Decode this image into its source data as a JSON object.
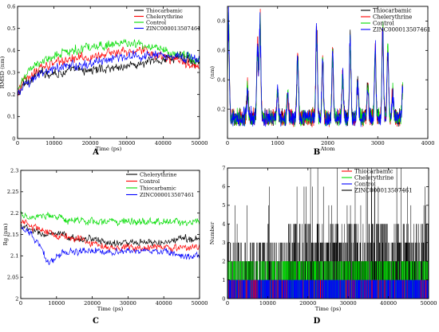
{
  "panels": [
    {
      "letter": "A",
      "chart_data": {
        "type": "line",
        "xlabel": "Time (ps)",
        "ylabel": "RMSD (nm)",
        "xlim": [
          0,
          50000
        ],
        "ylim": [
          0,
          0.6
        ],
        "xticks": [
          0,
          10000,
          20000,
          30000,
          40000,
          50000
        ],
        "yticks": [
          0,
          0.1,
          0.2,
          0.3,
          0.4,
          0.5,
          0.6
        ],
        "xtick_labels": [
          "0",
          "10000",
          "20000",
          "30000",
          "40000",
          "50000"
        ],
        "ytick_labels": [
          "0",
          "0.1",
          "0.2",
          "0.3",
          "0.4",
          "0.5",
          "0.6"
        ],
        "legend_position": "top-right",
        "grid": false,
        "series": [
          {
            "name": "Thiocarbamic",
            "color": "#000000",
            "x": [
              0,
              2000,
              5000,
              8000,
              12000,
              16000,
              20000,
              25000,
              30000,
              35000,
              40000,
              45000,
              50000
            ],
            "y": [
              0.2,
              0.25,
              0.29,
              0.3,
              0.3,
              0.31,
              0.31,
              0.32,
              0.33,
              0.34,
              0.36,
              0.37,
              0.35
            ]
          },
          {
            "name": "Chelerythrine",
            "color": "#ff0000",
            "x": [
              0,
              2000,
              5000,
              8000,
              12000,
              16000,
              20000,
              25000,
              30000,
              35000,
              40000,
              45000,
              50000
            ],
            "y": [
              0.2,
              0.27,
              0.31,
              0.33,
              0.35,
              0.36,
              0.37,
              0.39,
              0.4,
              0.4,
              0.37,
              0.35,
              0.32
            ]
          },
          {
            "name": "Control",
            "color": "#00dd00",
            "x": [
              0,
              2000,
              5000,
              8000,
              12000,
              16000,
              20000,
              25000,
              30000,
              35000,
              40000,
              45000,
              50000
            ],
            "y": [
              0.22,
              0.28,
              0.33,
              0.36,
              0.39,
              0.4,
              0.42,
              0.43,
              0.43,
              0.42,
              0.4,
              0.38,
              0.36
            ]
          },
          {
            "name": "ZINC000013507461",
            "color": "#0000ff",
            "x": [
              0,
              2000,
              5000,
              8000,
              12000,
              16000,
              20000,
              25000,
              30000,
              35000,
              40000,
              45000,
              50000
            ],
            "y": [
              0.21,
              0.24,
              0.28,
              0.31,
              0.32,
              0.33,
              0.34,
              0.36,
              0.37,
              0.38,
              0.38,
              0.37,
              0.36
            ]
          }
        ]
      }
    },
    {
      "letter": "B",
      "chart_data": {
        "type": "line",
        "xlabel": "Atom",
        "ylabel": "(nm)",
        "xlim": [
          0,
          4000
        ],
        "ylim": [
          0,
          0.9
        ],
        "xticks": [
          0,
          1000,
          2000,
          3000,
          4000
        ],
        "yticks": [
          0.2,
          0.4,
          0.6,
          0.8
        ],
        "xtick_labels": [
          "0",
          "1000",
          "2000",
          "3000",
          "4000"
        ],
        "ytick_labels": [
          "0.2",
          "0.4",
          "0.6",
          "0.8"
        ],
        "legend_position": "top-right",
        "grid": false,
        "series": [
          {
            "name": "Thiocarbamic",
            "color": "#000000"
          },
          {
            "name": "Chelerythrine",
            "color": "#ff0000"
          },
          {
            "name": "Control",
            "color": "#00dd00"
          },
          {
            "name": "ZINC000013507461",
            "color": "#0000ff"
          }
        ],
        "peaks": {
          "atom": [
            0,
            20,
            400,
            600,
            650,
            1000,
            1200,
            1400,
            1780,
            1900,
            2100,
            2300,
            2450,
            2600,
            2800,
            2950,
            3100,
            3200,
            3300,
            3500
          ],
          "rmsf": [
            0.1,
            0.78,
            0.3,
            0.62,
            0.78,
            0.3,
            0.28,
            0.55,
            0.73,
            0.5,
            0.55,
            0.4,
            0.65,
            0.38,
            0.35,
            0.58,
            0.72,
            0.6,
            0.3,
            0.32
          ]
        }
      }
    },
    {
      "letter": "C",
      "chart_data": {
        "type": "line",
        "xlabel": "Time (ps)",
        "ylabel": "Rg (nm)",
        "xlim": [
          0,
          50000
        ],
        "ylim": [
          2,
          2.3
        ],
        "xticks": [
          0,
          10000,
          20000,
          30000,
          40000,
          50000
        ],
        "yticks": [
          2,
          2.05,
          2.1,
          2.15,
          2.2,
          2.25,
          2.3
        ],
        "xtick_labels": [
          "0",
          "10000",
          "20000",
          "30000",
          "40000",
          "50000"
        ],
        "ytick_labels": [
          "2",
          "2.05",
          "2.1",
          "2.15",
          "2.2",
          "2.25",
          "2.3"
        ],
        "legend_position": "top-right",
        "grid": false,
        "series": [
          {
            "name": "Chelerythrine",
            "color": "#000000",
            "x": [
              0,
              3000,
              6000,
              10000,
              15000,
              20000,
              25000,
              30000,
              35000,
              40000,
              45000,
              50000
            ],
            "y": [
              2.17,
              2.16,
              2.15,
              2.15,
              2.14,
              2.14,
              2.13,
              2.13,
              2.13,
              2.13,
              2.14,
              2.14
            ]
          },
          {
            "name": "Control",
            "color": "#ff0000",
            "x": [
              0,
              3000,
              6000,
              10000,
              15000,
              20000,
              25000,
              30000,
              35000,
              40000,
              45000,
              50000
            ],
            "y": [
              2.18,
              2.17,
              2.16,
              2.15,
              2.14,
              2.13,
              2.12,
              2.12,
              2.12,
              2.12,
              2.12,
              2.12
            ]
          },
          {
            "name": "Thiocarbamic",
            "color": "#00dd00",
            "x": [
              0,
              3000,
              6000,
              10000,
              15000,
              20000,
              25000,
              30000,
              35000,
              40000,
              45000,
              50000
            ],
            "y": [
              2.2,
              2.19,
              2.19,
              2.19,
              2.18,
              2.18,
              2.18,
              2.18,
              2.18,
              2.18,
              2.18,
              2.18
            ]
          },
          {
            "name": "ZINC000013507461",
            "color": "#0000ff",
            "x": [
              0,
              3000,
              6000,
              8000,
              10000,
              15000,
              20000,
              25000,
              30000,
              35000,
              40000,
              45000,
              50000
            ],
            "y": [
              2.17,
              2.15,
              2.11,
              2.08,
              2.1,
              2.11,
              2.11,
              2.11,
              2.11,
              2.11,
              2.11,
              2.1,
              2.1
            ]
          }
        ]
      }
    },
    {
      "letter": "D",
      "chart_data": {
        "type": "bar",
        "xlabel": "Time (ps)",
        "ylabel": "Number",
        "xlim": [
          0,
          50000
        ],
        "ylim": [
          0,
          7
        ],
        "xticks": [
          0,
          10000,
          20000,
          30000,
          40000,
          50000
        ],
        "yticks": [
          0,
          1,
          2,
          3,
          4,
          5,
          6,
          7
        ],
        "xtick_labels": [
          "0",
          "10000",
          "20000",
          "30000",
          "40000",
          "50000"
        ],
        "ytick_labels": [
          "0",
          "1",
          "2",
          "3",
          "4",
          "5",
          "6",
          "7"
        ],
        "legend_position": "top-right",
        "grid": false,
        "series": [
          {
            "name": "Thiocarbamic",
            "color": "#ff0000",
            "typical_max": 1
          },
          {
            "name": "Chelerythrine",
            "color": "#00dd00",
            "typical_max": 2
          },
          {
            "name": "Control",
            "color": "#0000ff",
            "typical_max": 1
          },
          {
            "name": "ZINC000013507461",
            "color": "#000000",
            "typical_max": 4
          }
        ]
      }
    }
  ]
}
